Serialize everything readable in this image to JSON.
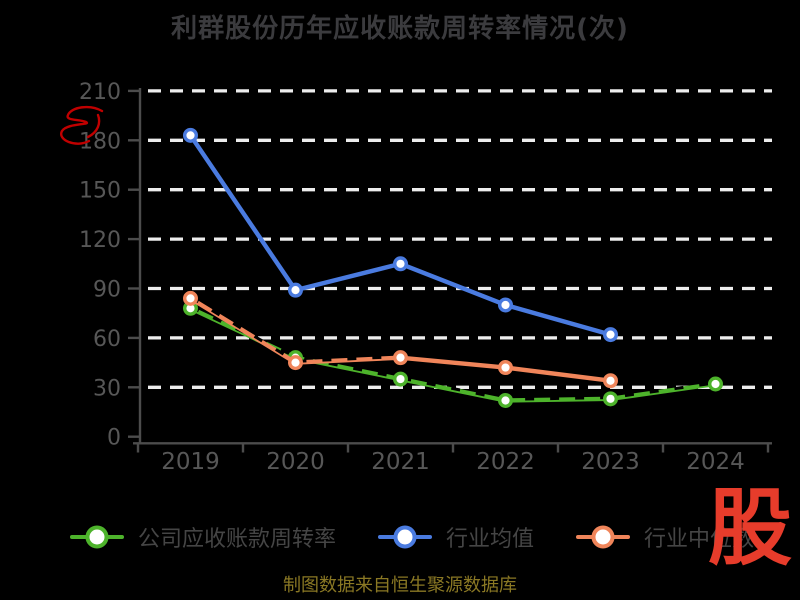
{
  "title": {
    "text": "利群股份历年应收账款周转率情况(次)",
    "color": "#3b3b3e"
  },
  "watermark": {
    "text": "股",
    "color": "#e73c2b"
  },
  "footer": {
    "text": "制图数据来自恒生聚源数据库",
    "color": "#8a7824"
  },
  "annotation": {
    "name": "red-scribble",
    "color": "#c00000"
  },
  "legend": {
    "items": [
      {
        "label": "公司应收账款周转率",
        "color": "#4db32b"
      },
      {
        "label": "行业均值",
        "color": "#4a7be0"
      },
      {
        "label": "行业中位数",
        "color": "#f0855a"
      }
    ],
    "text_color": "#454545"
  },
  "chart_data": {
    "type": "line",
    "title": "利群股份历年应收账款周转率情况(次)",
    "categories": [
      "2019",
      "2020",
      "2021",
      "2022",
      "2023",
      "2024"
    ],
    "series": [
      {
        "name": "公司应收账款周转率",
        "color": "#4db32b",
        "values": [
          78,
          48,
          35,
          22,
          23,
          32
        ],
        "overlay_dashes": [
          0,
          5
        ]
      },
      {
        "name": "行业均值",
        "color": "#4a7be0",
        "values": [
          183,
          89,
          105,
          80,
          62,
          null
        ],
        "overlay_dashes": null
      },
      {
        "name": "行业中位数",
        "color": "#f0855a",
        "values": [
          84,
          45,
          48,
          42,
          34,
          null
        ],
        "overlay_dashes": [
          0,
          2
        ]
      }
    ],
    "xlabel": "",
    "ylabel": "",
    "ylim": [
      0,
      210
    ],
    "yticks": [
      0,
      30,
      60,
      90,
      120,
      150,
      180,
      210
    ],
    "grid": "horizontal-dashed",
    "legend_position": "bottom",
    "marker": "circle-white-fill",
    "axis_color": "#4c4c4c",
    "tick_label_color": "#575757",
    "grid_color": "#ededed",
    "background": "#000000"
  }
}
